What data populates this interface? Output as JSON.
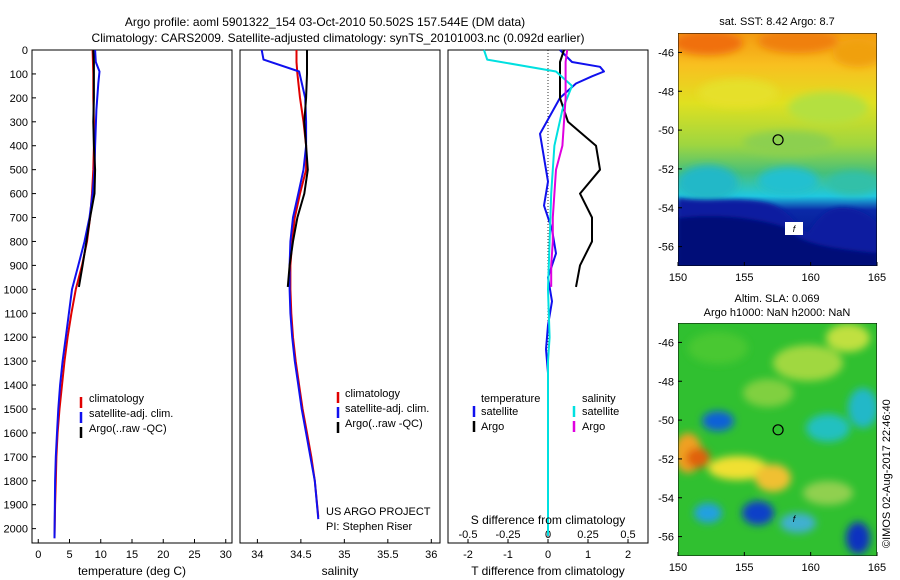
{
  "header": {
    "title_line1": "Argo profile: aoml 5901322_154 03-Oct-2010 50.502S 157.544E (DM data)",
    "title_line2": "Climatology: CARS2009. Satellite-adjusted climatology: synTS_20101003.nc (0.092d earlier)"
  },
  "colors": {
    "climatology": "#e00000",
    "satellite": "#1010ee",
    "argo": "#000000",
    "salinity_satellite": "#00e0e0",
    "salinity_argo": "#e000e0"
  },
  "chart_data": [
    {
      "type": "line",
      "xlabel": "temperature (deg C)",
      "ylabel": "",
      "xlim": [
        -1,
        31
      ],
      "ylim": [
        2060,
        0
      ],
      "xticks": [
        "0",
        "5",
        "10",
        "15",
        "20",
        "25",
        "30"
      ],
      "yticks": [
        "0",
        "100",
        "200",
        "300",
        "400",
        "500",
        "600",
        "700",
        "800",
        "900",
        "1000",
        "1100",
        "1200",
        "1300",
        "1400",
        "1500",
        "1600",
        "1700",
        "1800",
        "1900",
        "2000"
      ],
      "legend_position": "center",
      "series": [
        {
          "name": "climatology",
          "color": "#e00000",
          "x": [
            8.7,
            8.8,
            8.8,
            8.9,
            8.9,
            8.8,
            8.6,
            8.3,
            7.8,
            7.0,
            6.0,
            5.3,
            4.7,
            4.2,
            3.8,
            3.4,
            3.1,
            2.9,
            2.8,
            2.7,
            2.6
          ],
          "y": [
            0,
            100,
            200,
            300,
            400,
            500,
            600,
            700,
            800,
            900,
            1000,
            1100,
            1200,
            1300,
            1400,
            1500,
            1600,
            1700,
            1800,
            1900,
            2040
          ]
        },
        {
          "name": "satellite-adj. clim.",
          "color": "#1010ee",
          "x": [
            9.1,
            9.2,
            9.8,
            9.6,
            9.3,
            9.1,
            9.0,
            8.7,
            8.2,
            7.4,
            6.4,
            5.4,
            4.9,
            4.4,
            3.9,
            3.5,
            3.2,
            3.0,
            2.8,
            2.7,
            2.6
          ],
          "y": [
            0,
            50,
            90,
            140,
            250,
            400,
            500,
            600,
            700,
            800,
            900,
            1000,
            1100,
            1200,
            1300,
            1400,
            1500,
            1600,
            1700,
            1800,
            2040
          ]
        },
        {
          "name": "Argo(..raw -QC)",
          "color": "#000000",
          "x": [
            8.8,
            8.9,
            8.9,
            8.9,
            8.8,
            8.9,
            9.1,
            9.0,
            8.3,
            7.7,
            7.1,
            6.5
          ],
          "y": [
            0,
            50,
            100,
            200,
            300,
            400,
            500,
            600,
            700,
            800,
            900,
            990
          ]
        }
      ]
    },
    {
      "type": "line",
      "xlabel": "salinity",
      "ylabel": "",
      "xlim": [
        33.8,
        36.1
      ],
      "ylim": [
        2060,
        0
      ],
      "xticks": [
        "34",
        "34.5",
        "35",
        "35.5",
        "36"
      ],
      "legend_position": "center",
      "annotation": [
        "US ARGO PROJECT",
        "PI: Stephen Riser"
      ],
      "series": [
        {
          "name": "climatology",
          "color": "#e00000",
          "x": [
            34.45,
            34.45,
            34.46,
            34.49,
            34.53,
            34.56,
            34.56,
            34.49,
            34.43,
            34.4,
            34.38,
            34.38,
            34.39,
            34.41,
            34.44,
            34.48,
            34.52,
            34.57,
            34.62,
            34.66,
            34.7
          ],
          "y": [
            0,
            50,
            100,
            200,
            300,
            400,
            500,
            600,
            700,
            800,
            900,
            1000,
            1100,
            1200,
            1300,
            1400,
            1500,
            1600,
            1700,
            1800,
            1950
          ]
        },
        {
          "name": "satellite-adj. clim.",
          "color": "#1010ee",
          "x": [
            34.05,
            34.07,
            34.48,
            34.55,
            34.56,
            34.56,
            34.53,
            34.47,
            34.41,
            34.38,
            34.37,
            34.37,
            34.38,
            34.4,
            34.43,
            34.47,
            34.51,
            34.56,
            34.61,
            34.66,
            34.7
          ],
          "y": [
            0,
            40,
            90,
            200,
            300,
            400,
            500,
            600,
            700,
            800,
            900,
            1000,
            1100,
            1200,
            1300,
            1400,
            1500,
            1600,
            1700,
            1800,
            1960
          ]
        },
        {
          "name": "Argo(..raw -QC)",
          "color": "#000000",
          "x": [
            34.57,
            34.57,
            34.57,
            34.56,
            34.54,
            34.56,
            34.58,
            34.54,
            34.46,
            34.41,
            34.37,
            34.35
          ],
          "y": [
            0,
            50,
            100,
            200,
            300,
            400,
            500,
            600,
            700,
            800,
            900,
            990
          ]
        }
      ]
    },
    {
      "type": "line",
      "xlabel": "T difference from climatology",
      "xlabel2": "S difference from climatology",
      "xlim": [
        -2.5,
        2.5
      ],
      "xlim_s": [
        -0.625,
        0.625
      ],
      "ylim": [
        2060,
        0
      ],
      "xticks": [
        "-2",
        "-1",
        "0",
        "1",
        "2"
      ],
      "xticks2": [
        "-0.5",
        "-0.25",
        "0",
        "0.25",
        "0.5"
      ],
      "legend_groups": [
        "temperature",
        "salinity"
      ],
      "series": [
        {
          "name": "satellite",
          "group": "temperature",
          "color": "#1010ee",
          "x": [
            0.3,
            0.6,
            1.3,
            1.4,
            1.1,
            0.7,
            0.3,
            -0.2,
            -0.1,
            0.0,
            -0.1,
            0.1,
            0.2,
            0.0,
            0.1,
            0.0,
            -0.05,
            0.0,
            0.0,
            0.0,
            0.0,
            0.0,
            0.0,
            0.0,
            0.0
          ],
          "y": [
            0,
            50,
            70,
            90,
            110,
            140,
            200,
            350,
            450,
            550,
            650,
            750,
            850,
            950,
            1050,
            1150,
            1250,
            1350,
            1450,
            1550,
            1650,
            1750,
            1850,
            1950,
            2030
          ]
        },
        {
          "name": "Argo",
          "group": "temperature",
          "color": "#000000",
          "x": [
            0.4,
            0.3,
            0.3,
            0.3,
            0.5,
            1.2,
            1.3,
            0.8,
            1.1,
            1.1,
            0.8,
            0.7
          ],
          "y": [
            0,
            50,
            100,
            200,
            300,
            400,
            500,
            600,
            700,
            800,
            900,
            990
          ]
        },
        {
          "name": "satellite",
          "group": "salinity",
          "color": "#00e0e0",
          "x": [
            -0.4,
            -0.38,
            0.05,
            0.15,
            0.09,
            0.04,
            0.02,
            0.01,
            0.0,
            0.01,
            0.0,
            0.0,
            0.0,
            0.0,
            0.0,
            0.0,
            0.0,
            0.0
          ],
          "y": [
            0,
            40,
            90,
            150,
            250,
            400,
            600,
            800,
            1000,
            1200,
            1300,
            1400,
            1500,
            1600,
            1700,
            1800,
            1900,
            2030
          ]
        },
        {
          "name": "Argo",
          "group": "salinity",
          "color": "#e000e0",
          "x": [
            0.12,
            0.11,
            0.11,
            0.11,
            0.1,
            0.09,
            0.05,
            0.04,
            0.03,
            0.03,
            0.02,
            0.02
          ],
          "y": [
            0,
            50,
            100,
            200,
            300,
            400,
            500,
            600,
            700,
            800,
            900,
            990
          ]
        }
      ]
    },
    {
      "type": "heatmap",
      "title": "sat. SST: 8.42 Argo: 8.7",
      "xticks": [
        "150",
        "155",
        "160",
        "165"
      ],
      "yticks": [
        "-46",
        "-48",
        "-50",
        "-52",
        "-54",
        "-56"
      ],
      "xlim": [
        150,
        165
      ],
      "ylim": [
        -57,
        -45
      ],
      "marker": {
        "lon": 157.544,
        "lat": -50.502
      }
    },
    {
      "type": "heatmap",
      "title_line1": "Altim. SLA: 0.069",
      "title_line2": "Argo h1000: NaN h2000: NaN",
      "xticks": [
        "150",
        "155",
        "160",
        "165"
      ],
      "yticks": [
        "-46",
        "-48",
        "-50",
        "-52",
        "-54",
        "-56"
      ],
      "xlim": [
        150,
        165
      ],
      "ylim": [
        -57,
        -45
      ],
      "marker": {
        "lon": 157.544,
        "lat": -50.502
      }
    }
  ],
  "footer": {
    "credit": "©IMOS 02-Aug-2017 22:46:40"
  }
}
